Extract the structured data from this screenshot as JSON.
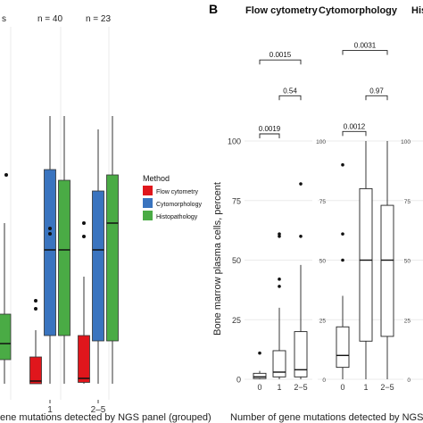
{
  "figure": {
    "panel_b_letter": "B",
    "left_xlabel": "ene mutations detected by NGS panel (grouped)",
    "left_top_label_1": "s",
    "right_xlabel": "Number of gene mutations detected by NGS",
    "right_ylabel": "Bone marrow plasma cells, percent",
    "legend_title": "Method"
  },
  "chart_data": [
    {
      "type": "box",
      "panel": "A (cropped)",
      "categories": [
        "1",
        "2–5"
      ],
      "n_labels": [
        "n = 40",
        "n = 23"
      ],
      "series": [
        {
          "name": "Flow cytometry",
          "color": "#e0161c",
          "boxes": [
            {
              "category": "1",
              "min": 0,
              "q1": 0,
              "median": 1,
              "q3": 10,
              "max": 20,
              "outliers": [
                28,
                31
              ]
            },
            {
              "category": "2–5",
              "min": 0,
              "q1": 0.5,
              "median": 2,
              "q3": 18,
              "max": 40,
              "outliers": [
                55,
                60
              ]
            }
          ]
        },
        {
          "name": "Cytomorphology",
          "color": "#3a74bf",
          "boxes": [
            {
              "category": "1",
              "min": 0,
              "q1": 18,
              "median": 50,
              "q3": 80,
              "max": 100,
              "outliers": [
                56,
                58
              ]
            },
            {
              "category": "2–5",
              "min": 0,
              "q1": 16,
              "median": 50,
              "q3": 72,
              "max": 95,
              "outliers": []
            }
          ]
        },
        {
          "name": "Histopathology",
          "color": "#4aab45",
          "boxes": [
            {
              "category": "1",
              "min": 0,
              "q1": 18,
              "median": 50,
              "q3": 76,
              "max": 100,
              "outliers": []
            },
            {
              "category": "2–5",
              "min": 0,
              "q1": 16,
              "median": 60,
              "q3": 78,
              "max": 100,
              "outliers": []
            }
          ]
        }
      ],
      "partial_box": {
        "q1": 9,
        "median": 15,
        "q3": 26,
        "max": 60,
        "min": 0,
        "outlier": 78
      },
      "legend": {
        "title": "Method",
        "entries": [
          {
            "label": "Flow cytometry",
            "color": "#e0161c"
          },
          {
            "label": "Cytomorphology",
            "color": "#3a74bf"
          },
          {
            "label": "Histopathology",
            "color": "#4aab45"
          }
        ]
      },
      "xlabel": "ene mutations detected by NGS panel (grouped)",
      "ylim": [
        0,
        110
      ]
    },
    {
      "type": "box",
      "panel": "B",
      "facets": [
        "Flow cytometry",
        "Cytomorphology",
        "Histo"
      ],
      "categories": [
        "0",
        "1",
        "2−5"
      ],
      "ylabel": "Bone marrow plasma cells, percent",
      "xlabel": "Number of gene mutations detected by NGS",
      "yticks": [
        0,
        25,
        50,
        75,
        100
      ],
      "ylim": [
        -4,
        146
      ],
      "data": [
        {
          "facet": "Flow cytometry",
          "boxes": [
            {
              "category": "0",
              "min": 0,
              "q1": 0.3,
              "median": 1,
              "q3": 2.5,
              "max": 3.5,
              "outliers": [
                11
              ]
            },
            {
              "category": "1",
              "min": 0,
              "q1": 1,
              "median": 3,
              "q3": 12,
              "max": 30,
              "outliers": [
                39,
                42,
                60,
                61
              ]
            },
            {
              "category": "2−5",
              "min": 0,
              "q1": 1,
              "median": 4,
              "q3": 20,
              "max": 48,
              "outliers": [
                60,
                82
              ]
            }
          ],
          "brackets": [
            {
              "from": "0",
              "to": "1",
              "label": "0.0019",
              "level": 103
            },
            {
              "from": "1",
              "to": "2−5",
              "label": "0.54",
              "level": 119
            },
            {
              "from": "0",
              "to": "2−5",
              "label": "0.0015",
              "level": 134
            }
          ]
        },
        {
          "facet": "Cytomorphology",
          "boxes": [
            {
              "category": "0",
              "min": 0,
              "q1": 5,
              "median": 10,
              "q3": 22,
              "max": 35,
              "outliers": [
                50,
                61,
                90
              ]
            },
            {
              "category": "1",
              "min": 0,
              "q1": 16,
              "median": 50,
              "q3": 80,
              "max": 100,
              "outliers": []
            },
            {
              "category": "2−5",
              "min": 0,
              "q1": 18,
              "median": 50,
              "q3": 73,
              "max": 100,
              "outliers": []
            }
          ],
          "brackets": [
            {
              "from": "0",
              "to": "1",
              "label": "0.0012",
              "level": 104
            },
            {
              "from": "1",
              "to": "2−5",
              "label": "0.97",
              "level": 119
            },
            {
              "from": "0",
              "to": "2−5",
              "label": "0.0031",
              "level": 138
            }
          ]
        }
      ]
    }
  ]
}
